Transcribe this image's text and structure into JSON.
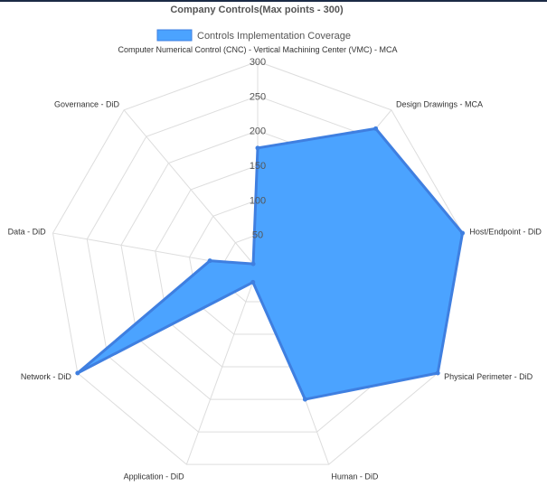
{
  "colors": {
    "area_fill": "#4ba3ff",
    "area_stroke": "#3f7fe0",
    "grid": "#dddddd",
    "header_bar": "#1b2a45"
  },
  "chart_data": {
    "type": "radar",
    "title": "Company Controls(Max points - 300)",
    "legend": {
      "position": "top",
      "entries": [
        "Controls Implementation Coverage"
      ]
    },
    "categories": [
      "Computer Numerical Control (CNC) - Vertical Machining Center (VMC) - MCA",
      "Design Drawings - MCA",
      "Host/Endpoint - DiD",
      "Physical Perimeter - DiD",
      "Human - DiD",
      "Application - DiD",
      "Network - DiD",
      "Data - DiD",
      "Governance - DiD"
    ],
    "ticks": [
      50,
      100,
      150,
      200,
      250,
      300
    ],
    "rlim": [
      0,
      300
    ],
    "grid": true,
    "series": [
      {
        "name": "Controls Implementation Coverage",
        "values": [
          175,
          265,
          300,
          300,
          200,
          20,
          300,
          70,
          10
        ]
      }
    ]
  }
}
